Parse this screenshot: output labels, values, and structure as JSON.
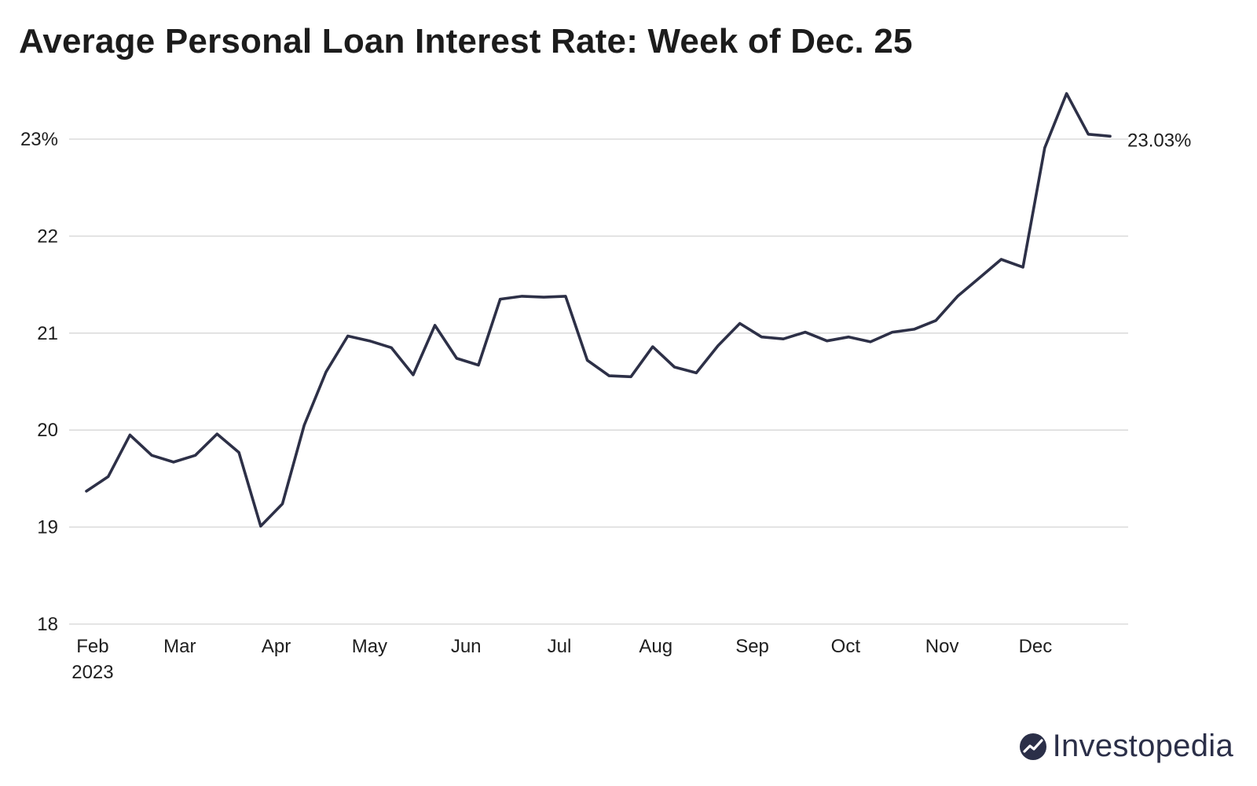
{
  "title": "Average Personal Loan Interest Rate: Week of Dec. 25",
  "brand": "Investopedia",
  "colors": {
    "line": "#2d3047",
    "grid": "#dcdcdc",
    "text": "#1e1e1e"
  },
  "chart_data": {
    "type": "line",
    "title": "Average Personal Loan Interest Rate: Week of Dec. 25",
    "xlabel": "",
    "ylabel": "",
    "ylim": [
      18,
      23.5
    ],
    "yticks": [
      18,
      19,
      20,
      21,
      22,
      23
    ],
    "ytick_labels": [
      "18",
      "19",
      "20",
      "21",
      "22",
      "23%"
    ],
    "xticks": [
      {
        "label": "Feb",
        "sub": "2023",
        "date": "2023-02-01"
      },
      {
        "label": "Mar",
        "sub": "",
        "date": "2023-03-01"
      },
      {
        "label": "Apr",
        "sub": "",
        "date": "2023-04-01"
      },
      {
        "label": "May",
        "sub": "",
        "date": "2023-05-01"
      },
      {
        "label": "Jun",
        "sub": "",
        "date": "2023-06-01"
      },
      {
        "label": "Jul",
        "sub": "",
        "date": "2023-07-01"
      },
      {
        "label": "Aug",
        "sub": "",
        "date": "2023-08-01"
      },
      {
        "label": "Sep",
        "sub": "",
        "date": "2023-09-01"
      },
      {
        "label": "Oct",
        "sub": "",
        "date": "2023-10-01"
      },
      {
        "label": "Nov",
        "sub": "",
        "date": "2023-11-01"
      },
      {
        "label": "Dec",
        "sub": "",
        "date": "2023-12-01"
      }
    ],
    "grid": true,
    "end_label": "23.03%",
    "series": [
      {
        "x": [
          "2023-01-30",
          "2023-02-06",
          "2023-02-13",
          "2023-02-20",
          "2023-02-27",
          "2023-03-06",
          "2023-03-13",
          "2023-03-20",
          "2023-03-27",
          "2023-04-03",
          "2023-04-10",
          "2023-04-17",
          "2023-04-24",
          "2023-05-01",
          "2023-05-08",
          "2023-05-15",
          "2023-05-22",
          "2023-05-29",
          "2023-06-05",
          "2023-06-12",
          "2023-06-19",
          "2023-06-26",
          "2023-07-03",
          "2023-07-10",
          "2023-07-17",
          "2023-07-24",
          "2023-07-31",
          "2023-08-07",
          "2023-08-14",
          "2023-08-21",
          "2023-08-28",
          "2023-09-04",
          "2023-09-11",
          "2023-09-18",
          "2023-09-25",
          "2023-10-02",
          "2023-10-09",
          "2023-10-16",
          "2023-10-23",
          "2023-10-30",
          "2023-11-06",
          "2023-11-13",
          "2023-11-20",
          "2023-11-27",
          "2023-12-04",
          "2023-12-11",
          "2023-12-18",
          "2023-12-25"
        ],
        "values": [
          19.37,
          19.52,
          19.95,
          19.74,
          19.67,
          19.74,
          19.96,
          19.77,
          19.01,
          19.24,
          20.05,
          20.6,
          20.97,
          20.92,
          20.85,
          20.57,
          21.08,
          20.74,
          20.67,
          21.35,
          21.38,
          21.37,
          21.38,
          20.72,
          20.56,
          20.55,
          20.86,
          20.65,
          20.59,
          20.87,
          21.1,
          20.96,
          20.94,
          21.01,
          20.92,
          20.96,
          20.91,
          21.01,
          21.04,
          21.13,
          21.38,
          21.57,
          21.76,
          21.68,
          22.91,
          23.47,
          23.05,
          23.03
        ]
      }
    ]
  }
}
